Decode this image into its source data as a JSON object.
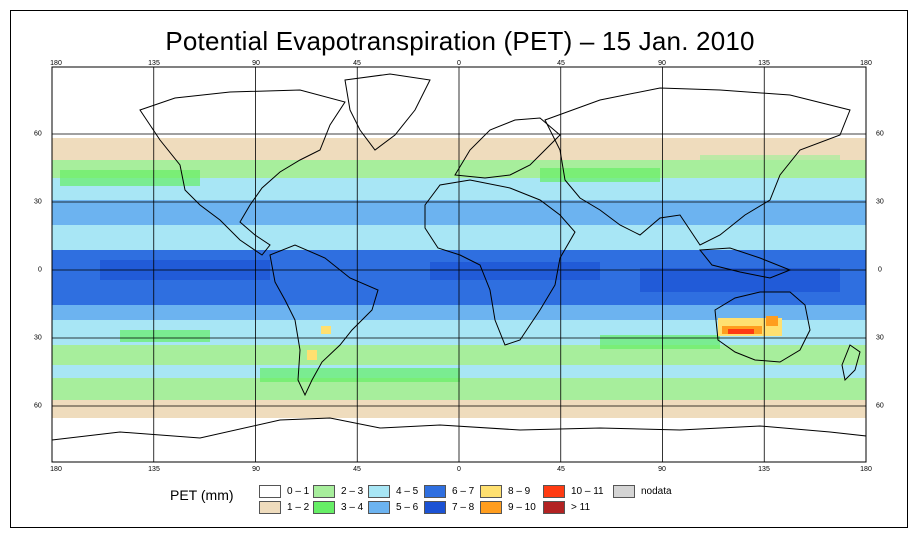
{
  "title": "Potential Evapotranspiration (PET) – 15 Jan. 2010",
  "colors": {
    "c0": "#ffffff",
    "c1": "#efdcbd",
    "c2": "#a7ee9c",
    "c3": "#66ee66",
    "c4": "#a8e6f5",
    "c5": "#6cb3f0",
    "c6": "#2f6fe0",
    "c7": "#1b52d4",
    "c8": "#ffe070",
    "c9": "#ff9d1e",
    "c10": "#ff3b12",
    "c11": "#b22222",
    "nodata": "#d4d4d4",
    "grid": "#000000",
    "coast": "#000000"
  },
  "axes": {
    "lon_top": [
      "180",
      "135",
      "90",
      "45",
      "0",
      "45",
      "90",
      "135",
      "180"
    ],
    "lon_bottom": [
      "180",
      "135",
      "90",
      "45",
      "0",
      "45",
      "90",
      "135",
      "180"
    ],
    "lat_left": [
      "60",
      "30",
      "0",
      "30",
      "60"
    ],
    "lat_right": [
      "60",
      "30",
      "0",
      "30",
      "60"
    ]
  },
  "legend": {
    "title": "PET (mm)",
    "items": [
      {
        "label": "0 – 1",
        "color": "#ffffff"
      },
      {
        "label": "1 – 2",
        "color": "#efdcbd"
      },
      {
        "label": "2 – 3",
        "color": "#a7ee9c"
      },
      {
        "label": "3 – 4",
        "color": "#66ee66"
      },
      {
        "label": "4 – 5",
        "color": "#a8e6f5"
      },
      {
        "label": "5 – 6",
        "color": "#6cb3f0"
      },
      {
        "label": "6 – 7",
        "color": "#2f6fe0"
      },
      {
        "label": "7 – 8",
        "color": "#1b52d4"
      },
      {
        "label": "8 – 9",
        "color": "#ffe070"
      },
      {
        "label": "9 – 10",
        "color": "#ff9d1e"
      },
      {
        "label": "10 – 11",
        "color": "#ff3b12"
      },
      {
        "label": "> 11",
        "color": "#b22222"
      },
      {
        "label": "nodata",
        "color": "#d4d4d4"
      }
    ]
  }
}
